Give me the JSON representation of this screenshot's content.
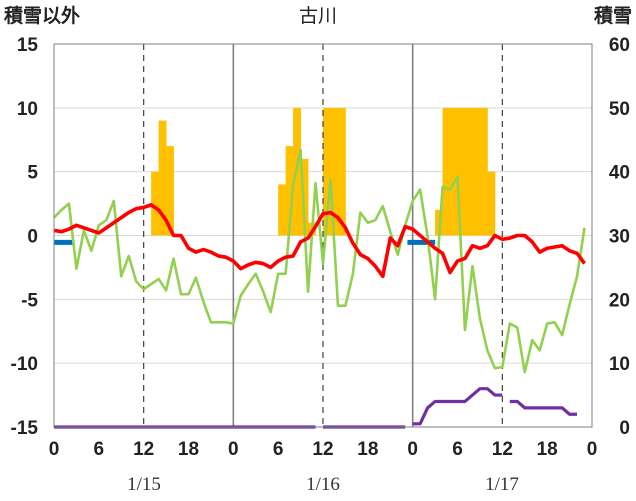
{
  "chart_data": {
    "type": "line",
    "title": "古川",
    "left_axis_label": "積雪以外",
    "right_axis_label": "積雪",
    "left_ylim": [
      -15,
      15
    ],
    "right_ylim": [
      0,
      60
    ],
    "left_ticks": [
      "15",
      "10",
      "5",
      "0",
      "-5",
      "-10",
      "-15"
    ],
    "right_ticks": [
      "60",
      "50",
      "40",
      "30",
      "20",
      "10",
      "0"
    ],
    "x_tick_labels": [
      "0",
      "6",
      "12",
      "18",
      "0",
      "6",
      "12",
      "18",
      "0",
      "6",
      "12",
      "18",
      "0"
    ],
    "date_labels": [
      "1/15",
      "1/16",
      "1/17"
    ],
    "hours_total": 72,
    "grid": true,
    "colors": {
      "temperature": "#ff0000",
      "humidity_line": "#92d050",
      "precipitation": "#ffc000",
      "snow_depth": "#7030a0",
      "blue_bar": "#0070c0",
      "day_divider": "#808080",
      "gridline": "#d9d9d9"
    },
    "series": [
      {
        "id": "temperature",
        "axis": "left",
        "values": [
          0.4,
          0.3,
          0.5,
          0.8,
          0.6,
          0.4,
          0.2,
          0.6,
          1.0,
          1.4,
          1.8,
          2.1,
          2.2,
          2.4,
          2.0,
          1.2,
          0.0,
          0.0,
          -1.0,
          -1.3,
          -1.1,
          -1.3,
          -1.6,
          -1.7,
          -2.0,
          -2.6,
          -2.3,
          -2.1,
          -2.2,
          -2.5,
          -2.0,
          -1.7,
          -1.6,
          -0.5,
          -0.2,
          0.7,
          1.7,
          1.8,
          1.4,
          0.6,
          -0.6,
          -1.5,
          -1.8,
          -2.4,
          -3.2,
          -0.2,
          -0.8,
          0.7,
          0.5,
          0.0,
          -0.5,
          -1.0,
          -1.4,
          -2.9,
          -2.0,
          -1.8,
          -0.8,
          -1.0,
          -0.8,
          0.0,
          -0.3,
          -0.2,
          0.0,
          0.0,
          -0.5,
          -1.3,
          -1.0,
          -0.9,
          -0.8,
          -1.2,
          -1.4,
          -2.2
        ]
      },
      {
        "id": "humidity_line",
        "axis": "left",
        "values": [
          1.4,
          2.0,
          2.5,
          -2.6,
          0.4,
          -1.2,
          0.8,
          1.2,
          2.7,
          -3.2,
          -1.6,
          -3.6,
          -4.2,
          -3.8,
          -3.4,
          -4.3,
          -1.8,
          -4.6,
          -4.6,
          -3.3,
          -5.2,
          -6.8,
          -6.8,
          -6.8,
          -6.9,
          -4.7,
          -3.8,
          -3.0,
          -4.4,
          -6.0,
          -3.0,
          -3.0,
          4.0,
          6.7,
          -4.4,
          4.1,
          -2.2,
          4.4,
          -5.5,
          -5.5,
          -3.0,
          1.8,
          1.0,
          1.2,
          2.3,
          0.3,
          -1.5,
          0.8,
          2.7,
          3.6,
          -0.1,
          -5.0,
          3.8,
          3.6,
          4.6,
          -7.4,
          -2.4,
          -6.5,
          -9.0,
          -10.4,
          -10.3,
          -6.9,
          -7.2,
          -10.7,
          -8.2,
          -9.0,
          -6.9,
          -6.8,
          -7.8,
          -5.4,
          -3.2,
          0.6
        ]
      },
      {
        "id": "precipitation",
        "axis": "left",
        "bars": [
          [
            13.5,
            5.0
          ],
          [
            14.5,
            9.0
          ],
          [
            15.5,
            7.0
          ],
          [
            30.5,
            4.0
          ],
          [
            31.5,
            7.0
          ],
          [
            32.5,
            10.0
          ],
          [
            33.5,
            6.0
          ],
          [
            34.5,
            1.0
          ],
          [
            36.5,
            10.0
          ],
          [
            37.5,
            10.0
          ],
          [
            38.5,
            10.0
          ],
          [
            51.5,
            2.0
          ],
          [
            52.5,
            10.0
          ],
          [
            53.5,
            10.0
          ],
          [
            54.5,
            10.0
          ],
          [
            55.5,
            10.0
          ],
          [
            56.5,
            10.0
          ],
          [
            57.5,
            10.0
          ],
          [
            58.5,
            5.0
          ]
        ]
      },
      {
        "id": "snow_depth",
        "axis": "right",
        "segments": [
          [
            [
              0,
              0
            ],
            [
              35,
              0
            ]
          ],
          [
            [
              36,
              0
            ],
            [
              47,
              0
            ]
          ],
          [
            [
              48,
              0.5
            ],
            [
              49,
              0.5
            ],
            [
              50,
              3
            ],
            [
              51,
              4
            ],
            [
              52,
              4
            ],
            [
              53,
              4
            ],
            [
              54,
              4
            ],
            [
              55,
              4
            ],
            [
              56,
              5
            ],
            [
              57,
              6
            ],
            [
              58,
              6
            ],
            [
              59,
              5
            ],
            [
              60,
              5
            ]
          ],
          [
            [
              61,
              4
            ],
            [
              62,
              4
            ],
            [
              63,
              3
            ],
            [
              64,
              3
            ],
            [
              65,
              3
            ],
            [
              66,
              3
            ],
            [
              67,
              3
            ],
            [
              68,
              3
            ],
            [
              69,
              2
            ],
            [
              70,
              2
            ]
          ]
        ]
      },
      {
        "id": "blue_bar",
        "axis": "left",
        "ranges": [
          [
            0,
            2.5
          ],
          [
            47.3,
            51
          ]
        ],
        "value": -0.5
      }
    ]
  }
}
